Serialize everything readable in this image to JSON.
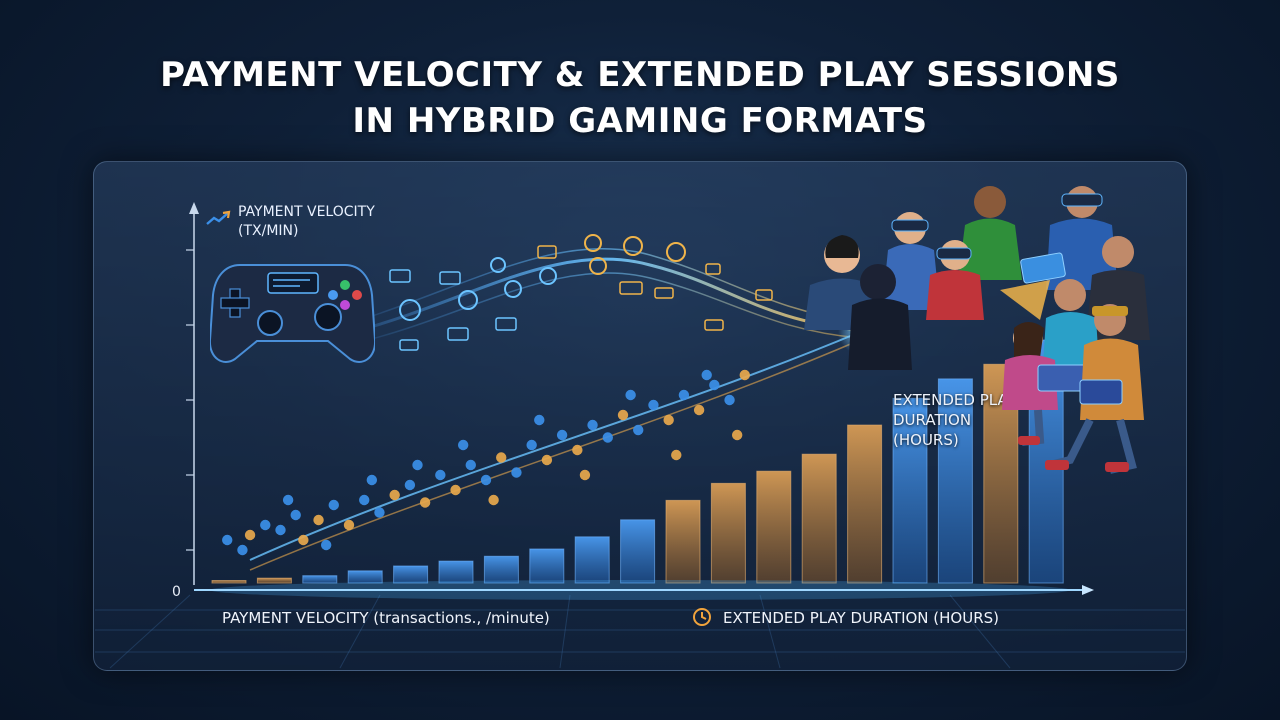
{
  "title_line1": "PAYMENT VELOCITY & EXTENDED PLAY SESSIONS",
  "title_line2": "IN HYBRID GAMING FORMATS",
  "icons": {
    "trend": "trend-up-icon",
    "clock": "clock-icon",
    "controller": "game-controller-icon",
    "players": "players-illustration"
  },
  "colors": {
    "velocity_blue": "#3b8fe8",
    "duration_gold": "#e0a24a",
    "bar_blue": "#3f86d8",
    "bar_gold": "#c9904a"
  },
  "chart_data": {
    "type": "bar",
    "title": "PAYMENT VELOCITY & EXTENDED PLAY SESSIONS IN HYBRID GAMING FORMATS",
    "ylabel_line1": "PAYMENT VELOCITY",
    "ylabel_line2": "(TX/MIN)",
    "xlabel": "PAYMENT VELOCITY (transactions., /minute)",
    "legend_duration": "EXTENDED PLAY DURATION (HOURS)",
    "duration_label_line1": "EXTENDED PLAY",
    "duration_label_line2": "DURATION",
    "duration_label_line3": "(HOURS)",
    "zero_label": "0",
    "ylim": [
      0,
      100
    ],
    "bars": [
      {
        "value": 1,
        "color": "gold"
      },
      {
        "value": 2,
        "color": "gold"
      },
      {
        "value": 3,
        "color": "blue"
      },
      {
        "value": 5,
        "color": "blue"
      },
      {
        "value": 7,
        "color": "blue"
      },
      {
        "value": 9,
        "color": "blue"
      },
      {
        "value": 11,
        "color": "blue"
      },
      {
        "value": 14,
        "color": "blue"
      },
      {
        "value": 19,
        "color": "blue"
      },
      {
        "value": 26,
        "color": "blue"
      },
      {
        "value": 34,
        "color": "gold"
      },
      {
        "value": 41,
        "color": "gold"
      },
      {
        "value": 46,
        "color": "gold"
      },
      {
        "value": 53,
        "color": "gold"
      },
      {
        "value": 65,
        "color": "gold"
      },
      {
        "value": 76,
        "color": "blue"
      },
      {
        "value": 84,
        "color": "blue"
      },
      {
        "value": 90,
        "color": "gold"
      },
      {
        "value": 100,
        "color": "blue"
      }
    ],
    "scatter": [
      {
        "x": 2,
        "y": 14,
        "c": "b"
      },
      {
        "x": 4,
        "y": 10,
        "c": "b"
      },
      {
        "x": 5,
        "y": 16,
        "c": "o"
      },
      {
        "x": 7,
        "y": 20,
        "c": "b"
      },
      {
        "x": 9,
        "y": 18,
        "c": "b"
      },
      {
        "x": 11,
        "y": 24,
        "c": "b"
      },
      {
        "x": 12,
        "y": 14,
        "c": "o"
      },
      {
        "x": 14,
        "y": 22,
        "c": "o"
      },
      {
        "x": 16,
        "y": 28,
        "c": "b"
      },
      {
        "x": 18,
        "y": 20,
        "c": "o"
      },
      {
        "x": 20,
        "y": 30,
        "c": "b"
      },
      {
        "x": 22,
        "y": 25,
        "c": "b"
      },
      {
        "x": 24,
        "y": 32,
        "c": "o"
      },
      {
        "x": 26,
        "y": 36,
        "c": "b"
      },
      {
        "x": 28,
        "y": 29,
        "c": "o"
      },
      {
        "x": 30,
        "y": 40,
        "c": "b"
      },
      {
        "x": 32,
        "y": 34,
        "c": "o"
      },
      {
        "x": 34,
        "y": 44,
        "c": "b"
      },
      {
        "x": 36,
        "y": 38,
        "c": "b"
      },
      {
        "x": 38,
        "y": 47,
        "c": "o"
      },
      {
        "x": 40,
        "y": 41,
        "c": "b"
      },
      {
        "x": 42,
        "y": 52,
        "c": "b"
      },
      {
        "x": 44,
        "y": 46,
        "c": "o"
      },
      {
        "x": 46,
        "y": 56,
        "c": "b"
      },
      {
        "x": 48,
        "y": 50,
        "c": "o"
      },
      {
        "x": 50,
        "y": 60,
        "c": "b"
      },
      {
        "x": 52,
        "y": 55,
        "c": "b"
      },
      {
        "x": 54,
        "y": 64,
        "c": "o"
      },
      {
        "x": 56,
        "y": 58,
        "c": "b"
      },
      {
        "x": 58,
        "y": 68,
        "c": "b"
      },
      {
        "x": 60,
        "y": 62,
        "c": "o"
      },
      {
        "x": 62,
        "y": 72,
        "c": "b"
      },
      {
        "x": 64,
        "y": 66,
        "c": "o"
      },
      {
        "x": 66,
        "y": 76,
        "c": "b"
      },
      {
        "x": 68,
        "y": 70,
        "c": "b"
      },
      {
        "x": 70,
        "y": 80,
        "c": "o"
      },
      {
        "x": 10,
        "y": 30,
        "c": "b"
      },
      {
        "x": 15,
        "y": 12,
        "c": "b"
      },
      {
        "x": 21,
        "y": 38,
        "c": "b"
      },
      {
        "x": 27,
        "y": 44,
        "c": "b"
      },
      {
        "x": 33,
        "y": 52,
        "c": "b"
      },
      {
        "x": 37,
        "y": 30,
        "c": "o"
      },
      {
        "x": 43,
        "y": 62,
        "c": "b"
      },
      {
        "x": 49,
        "y": 40,
        "c": "o"
      },
      {
        "x": 55,
        "y": 72,
        "c": "b"
      },
      {
        "x": 61,
        "y": 48,
        "c": "o"
      },
      {
        "x": 65,
        "y": 80,
        "c": "b"
      },
      {
        "x": 69,
        "y": 56,
        "c": "o"
      }
    ]
  }
}
